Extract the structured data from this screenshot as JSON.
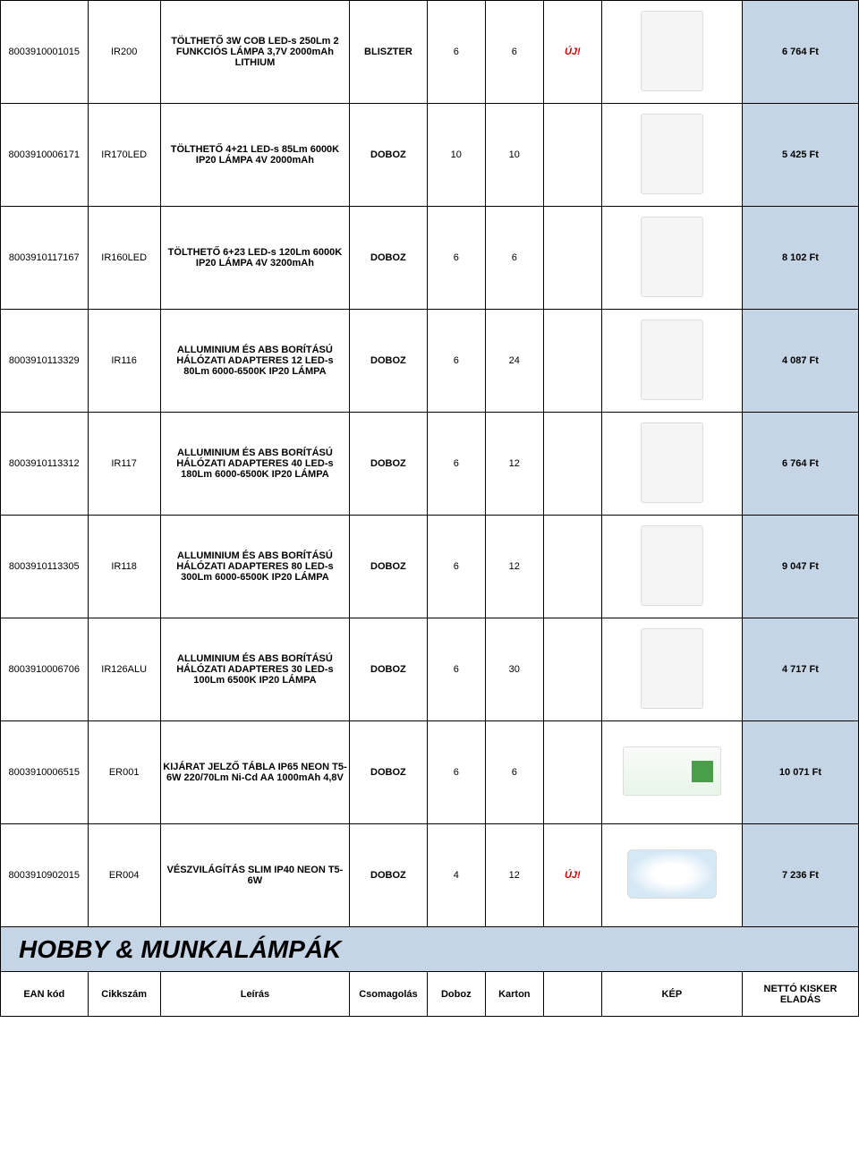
{
  "rows": [
    {
      "ean": "8003910001015",
      "sku": "IR200",
      "desc": "TÖLTHETŐ 3W COB LED-s 250Lm 2 FUNKCIÓS LÁMPA 3,7V 2000mAh LITHIUM",
      "pack": "BLISZTER",
      "box": "6",
      "carton": "6",
      "new": "ÚJ!",
      "price": "6 764 Ft",
      "img_class": "product-img"
    },
    {
      "ean": "8003910006171",
      "sku": "IR170LED",
      "desc": "TÖLTHETŐ 4+21 LED-s 85Lm 6000K IP20 LÁMPA 4V 2000mAh",
      "pack": "DOBOZ",
      "box": "10",
      "carton": "10",
      "new": "",
      "price": "5 425 Ft",
      "img_class": "product-img"
    },
    {
      "ean": "8003910117167",
      "sku": "IR160LED",
      "desc": "TÖLTHETŐ 6+23 LED-s 120Lm 6000K IP20 LÁMPA 4V 3200mAh",
      "pack": "DOBOZ",
      "box": "6",
      "carton": "6",
      "new": "",
      "price": "8 102 Ft",
      "img_class": "product-img"
    },
    {
      "ean": "8003910113329",
      "sku": "IR116",
      "desc": "ALLUMINIUM ÉS ABS BORÍTÁSÚ HÁLÓZATI ADAPTERES 12 LED-s 80Lm 6000-6500K IP20 LÁMPA",
      "pack": "DOBOZ",
      "box": "6",
      "carton": "24",
      "new": "",
      "price": "4 087 Ft",
      "img_class": "product-img"
    },
    {
      "ean": "8003910113312",
      "sku": "IR117",
      "desc": "ALLUMINIUM ÉS ABS BORÍTÁSÚ HÁLÓZATI ADAPTERES 40 LED-s 180Lm 6000-6500K IP20 LÁMPA",
      "pack": "DOBOZ",
      "box": "6",
      "carton": "12",
      "new": "",
      "price": "6 764 Ft",
      "img_class": "product-img"
    },
    {
      "ean": "8003910113305",
      "sku": "IR118",
      "desc": "ALLUMINIUM ÉS ABS BORÍTÁSÚ HÁLÓZATI ADAPTERES 80 LED-s 300Lm 6000-6500K IP20 LÁMPA",
      "pack": "DOBOZ",
      "box": "6",
      "carton": "12",
      "new": "",
      "price": "9 047 Ft",
      "img_class": "product-img"
    },
    {
      "ean": "8003910006706",
      "sku": "IR126ALU",
      "desc": "ALLUMINIUM ÉS ABS BORÍTÁSÚ HÁLÓZATI ADAPTERES 30 LED-s 100Lm 6500K IP20 LÁMPA",
      "pack": "DOBOZ",
      "box": "6",
      "carton": "30",
      "new": "",
      "price": "4 717 Ft",
      "img_class": "product-img"
    },
    {
      "ean": "8003910006515",
      "sku": "ER001",
      "desc": "KIJÁRAT JELZŐ TÁBLA IP65 NEON T5-6W 220/70Lm Ni-Cd AA 1000mAh 4,8V",
      "pack": "DOBOZ",
      "box": "6",
      "carton": "6",
      "new": "",
      "price": "10 071 Ft",
      "img_class": "product-img exit"
    },
    {
      "ean": "8003910902015",
      "sku": "ER004",
      "desc": "VÉSZVILÁGÍTÁS SLIM IP40 NEON T5-6W",
      "pack": "DOBOZ",
      "box": "4",
      "carton": "12",
      "new": "ÚJ!",
      "price": "7 236 Ft",
      "img_class": "product-img light"
    }
  ],
  "section_title": "HOBBY & MUNKALÁMPÁK",
  "headers": {
    "ean": "EAN kód",
    "sku": "Cikkszám",
    "desc": "Leírás",
    "pack": "Csomagolás",
    "box": "Doboz",
    "carton": "Karton",
    "img": "KÉP",
    "price": "NETTÓ KISKER ELADÁS"
  },
  "colors": {
    "price_bg": "#c5d5e5",
    "section_bg": "#c5d5e5",
    "new_color": "#cc0000",
    "border": "#000000"
  },
  "fonts": {
    "body": 11,
    "section": 28,
    "header": 11
  }
}
